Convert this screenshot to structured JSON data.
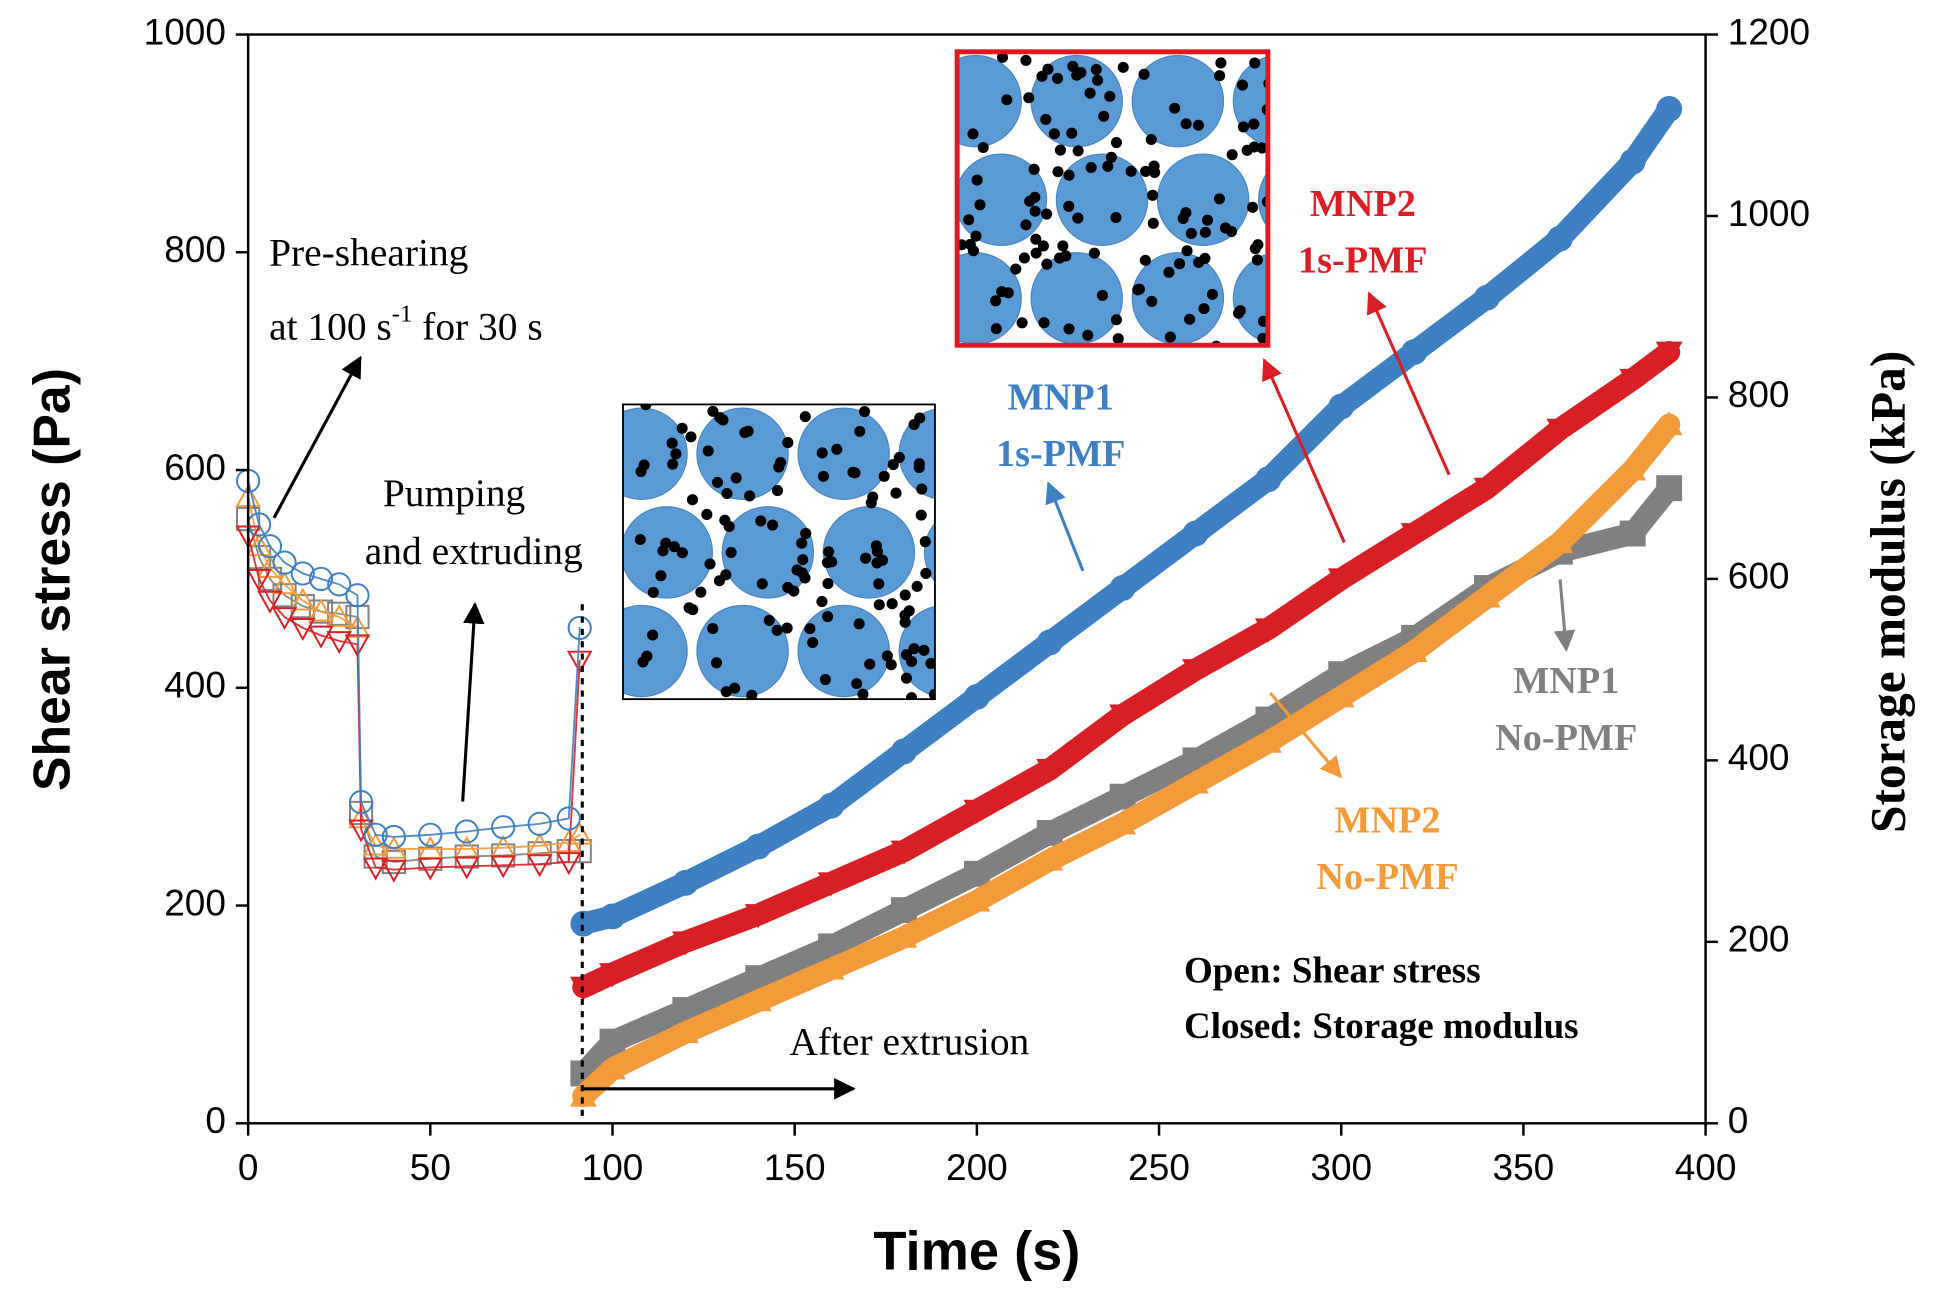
{
  "chart_data": {
    "type": "scatter",
    "x_label": "Time (s)",
    "y_label": "Shear stress (Pa)",
    "y2_label": "Storage modulus (kPa)",
    "xlim": [
      0,
      400
    ],
    "xticks": [
      0,
      50,
      100,
      150,
      200,
      250,
      300,
      350,
      400
    ],
    "ylim": [
      0,
      1000
    ],
    "yticks": [
      0,
      200,
      400,
      600,
      800,
      1000
    ],
    "y2lim": [
      0,
      1200
    ],
    "y2ticks": [
      0,
      200,
      400,
      600,
      800,
      1000,
      1200
    ],
    "series": [
      {
        "name": [
          "MNP1",
          "No-PMF"
        ],
        "color": "#808080",
        "marker": "square",
        "shear": {
          "x": [
            0,
            3,
            6,
            10,
            15,
            20,
            25,
            30,
            31,
            35,
            40,
            50,
            60,
            70,
            80,
            88,
            91
          ],
          "values": [
            555,
            520,
            500,
            485,
            475,
            470,
            468,
            465,
            285,
            245,
            240,
            243,
            245,
            246,
            248,
            250,
            250
          ]
        },
        "modulus": {
          "axis": "y2",
          "x": [
            92,
            100,
            120,
            140,
            160,
            180,
            200,
            220,
            240,
            260,
            280,
            300,
            320,
            340,
            360,
            380,
            390
          ],
          "values": [
            55,
            90,
            125,
            160,
            195,
            235,
            275,
            320,
            360,
            400,
            445,
            495,
            535,
            590,
            630,
            650,
            700
          ]
        }
      },
      {
        "name": [
          "MNP2",
          "No-PMF"
        ],
        "color": "#f39a3a",
        "marker": "triangle-up",
        "shear": {
          "x": [
            0,
            3,
            6,
            10,
            15,
            20,
            25,
            30,
            31,
            35,
            40,
            50,
            60,
            70,
            80,
            88,
            91
          ],
          "values": [
            575,
            530,
            510,
            495,
            480,
            470,
            465,
            455,
            280,
            255,
            252,
            252,
            252,
            253,
            255,
            258,
            265
          ]
        },
        "modulus": {
          "axis": "y2",
          "x": [
            92,
            100,
            120,
            140,
            160,
            180,
            200,
            220,
            240,
            260,
            280,
            300,
            320,
            340,
            360,
            380,
            390
          ],
          "values": [
            30,
            60,
            100,
            135,
            170,
            205,
            245,
            290,
            330,
            375,
            420,
            470,
            520,
            580,
            640,
            720,
            770
          ]
        }
      },
      {
        "name": [
          "MNP2",
          "1s-PMF"
        ],
        "color": "#d91f26",
        "marker": "triangle-down",
        "shear": {
          "x": [
            0,
            3,
            6,
            10,
            15,
            20,
            25,
            30,
            31,
            35,
            40,
            50,
            60,
            70,
            80,
            88,
            91
          ],
          "values": [
            540,
            500,
            480,
            465,
            455,
            448,
            443,
            440,
            270,
            235,
            233,
            235,
            236,
            237,
            238,
            240,
            425
          ]
        },
        "modulus": {
          "axis": "y2",
          "x": [
            92,
            100,
            120,
            140,
            160,
            180,
            200,
            220,
            240,
            260,
            280,
            300,
            320,
            340,
            360,
            380,
            390
          ],
          "values": [
            150,
            165,
            200,
            230,
            265,
            300,
            345,
            390,
            450,
            500,
            545,
            600,
            650,
            700,
            765,
            820,
            850
          ]
        }
      },
      {
        "name": [
          "MNP1",
          "1s-PMF"
        ],
        "color": "#3e7fc1",
        "marker": "circle",
        "shear": {
          "x": [
            0,
            3,
            6,
            10,
            15,
            20,
            25,
            30,
            31,
            35,
            40,
            50,
            60,
            70,
            80,
            88,
            91
          ],
          "values": [
            590,
            550,
            530,
            515,
            505,
            500,
            495,
            485,
            295,
            265,
            263,
            265,
            268,
            272,
            275,
            280,
            455
          ]
        },
        "modulus": {
          "axis": "y2",
          "x": [
            92,
            100,
            120,
            140,
            160,
            180,
            200,
            220,
            240,
            260,
            280,
            300,
            320,
            340,
            360,
            380,
            390
          ],
          "values": [
            220,
            228,
            265,
            305,
            350,
            410,
            470,
            530,
            590,
            650,
            710,
            790,
            850,
            910,
            975,
            1060,
            1118
          ]
        }
      }
    ],
    "annotations": {
      "preshear_1": "Pre-shearing",
      "preshear_2a": "at 100 s",
      "preshear_sup": "-1",
      "preshear_2b": " for 30 s",
      "pumping_1": "Pumping",
      "pumping_2": "and extruding",
      "after": "After extrusion",
      "open": "Open: Shear stress",
      "closed": "Closed: Storage modulus"
    }
  }
}
